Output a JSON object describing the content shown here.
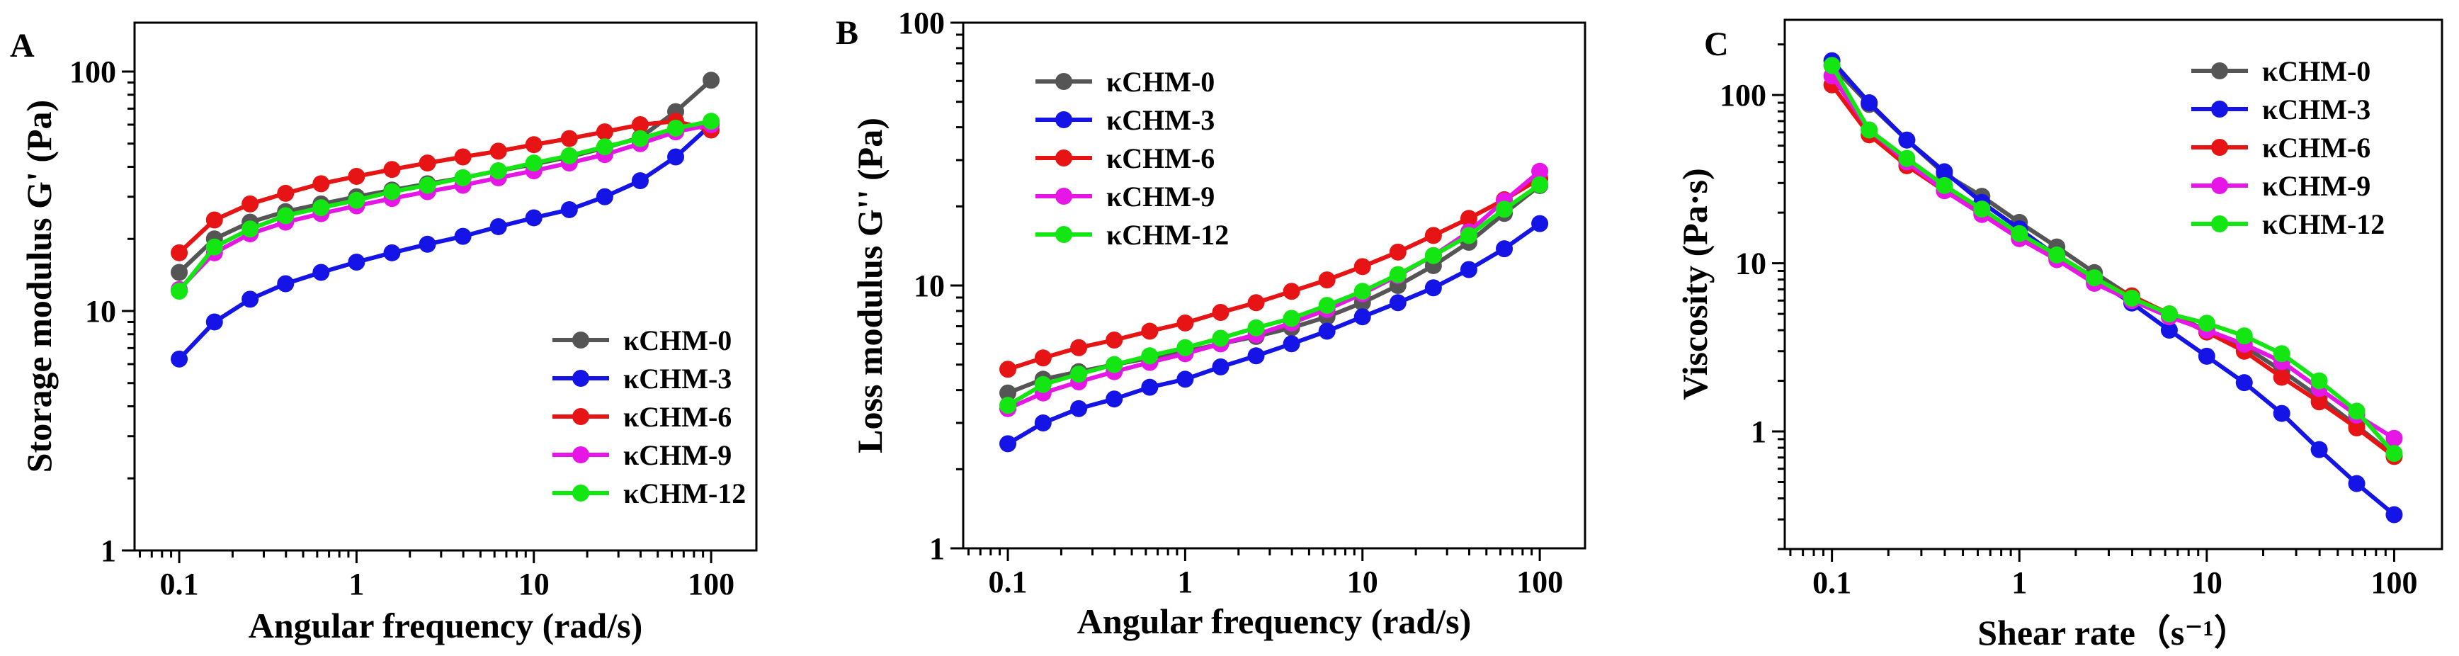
{
  "chart_data": [
    {
      "type": "line",
      "panel": "A",
      "xscale": "log",
      "yscale": "log",
      "xlim": [
        0.056,
        180
      ],
      "ylim": [
        1,
        160
      ],
      "xlabel": "Angular frequency (rad/s)",
      "ylabel": "Storage modulus G' (Pa)",
      "xticks": [
        0.1,
        1,
        10,
        100
      ],
      "xtick_labels": [
        "0.1",
        "1",
        "10",
        "100"
      ],
      "yticks": [
        1,
        10,
        100
      ],
      "ytick_labels": [
        "1",
        "10",
        "100"
      ],
      "legend_position": "bottom-right",
      "x": [
        0.1,
        0.158,
        0.251,
        0.398,
        0.631,
        1,
        1.585,
        2.512,
        3.981,
        6.31,
        10,
        15.85,
        25.12,
        39.81,
        63.1,
        100
      ],
      "series": [
        {
          "name": "κCHM-0",
          "color": "#555555",
          "values": [
            14.5,
            20,
            23.5,
            26,
            28,
            30,
            32,
            34,
            36,
            38.5,
            41,
            44,
            48,
            53,
            68,
            92
          ]
        },
        {
          "name": "κCHM-3",
          "color": "#1414e6",
          "values": [
            6.3,
            9,
            11.2,
            13,
            14.5,
            16,
            17.5,
            19,
            20.5,
            22.5,
            24.5,
            26.5,
            30,
            35,
            44,
            60
          ]
        },
        {
          "name": "κCHM-6",
          "color": "#e61414",
          "values": [
            17.5,
            24,
            28,
            31,
            34,
            36.5,
            39,
            41.5,
            44,
            46.5,
            49.5,
            52.5,
            56,
            60,
            62,
            57
          ]
        },
        {
          "name": "κCHM-9",
          "color": "#e617e6",
          "values": [
            12.3,
            17.5,
            21,
            23.5,
            25.5,
            27.5,
            29.5,
            31.5,
            33.5,
            36,
            38.5,
            41.5,
            45,
            50,
            56,
            60
          ]
        },
        {
          "name": "κCHM-12",
          "color": "#14e614",
          "values": [
            12.1,
            18.5,
            22,
            25,
            27,
            29,
            31.5,
            33.5,
            36,
            38.5,
            41.5,
            44.5,
            48.5,
            52.5,
            58,
            62
          ]
        }
      ]
    },
    {
      "type": "line",
      "panel": "B",
      "xscale": "log",
      "yscale": "log",
      "xlim": [
        0.056,
        180
      ],
      "ylim": [
        1,
        100
      ],
      "xlabel": "Angular frequency (rad/s)",
      "ylabel": "Loss modulus G'' (Pa)",
      "xticks": [
        0.1,
        1,
        10,
        100
      ],
      "xtick_labels": [
        "0.1",
        "1",
        "10",
        "100"
      ],
      "yticks": [
        1,
        10,
        100
      ],
      "ytick_labels": [
        "1",
        "10",
        "100"
      ],
      "legend_position": "top-left",
      "x": [
        0.1,
        0.158,
        0.251,
        0.398,
        0.631,
        1,
        1.585,
        2.512,
        3.981,
        6.31,
        10,
        15.85,
        25.12,
        39.81,
        63.1,
        100
      ],
      "series": [
        {
          "name": "κCHM-0",
          "color": "#555555",
          "values": [
            3.9,
            4.4,
            4.7,
            5.0,
            5.3,
            5.6,
            6.0,
            6.4,
            6.9,
            7.6,
            8.6,
            10.0,
            11.9,
            14.6,
            18.8,
            24
          ]
        },
        {
          "name": "κCHM-3",
          "color": "#1414e6",
          "values": [
            2.5,
            3.0,
            3.4,
            3.7,
            4.1,
            4.4,
            4.9,
            5.4,
            6.0,
            6.7,
            7.6,
            8.6,
            9.8,
            11.5,
            13.8,
            17.2
          ]
        },
        {
          "name": "κCHM-6",
          "color": "#e61414",
          "values": [
            4.8,
            5.3,
            5.8,
            6.2,
            6.7,
            7.2,
            7.9,
            8.6,
            9.5,
            10.5,
            11.8,
            13.4,
            15.5,
            18.0,
            21.2,
            25.5
          ]
        },
        {
          "name": "κCHM-9",
          "color": "#e617e6",
          "values": [
            3.4,
            3.9,
            4.3,
            4.7,
            5.1,
            5.5,
            6.0,
            6.5,
            7.2,
            8.1,
            9.3,
            10.9,
            13.0,
            16.0,
            21.0,
            27.2
          ]
        },
        {
          "name": "κCHM-12",
          "color": "#14e614",
          "values": [
            3.5,
            4.2,
            4.6,
            5.0,
            5.4,
            5.8,
            6.3,
            6.9,
            7.5,
            8.4,
            9.5,
            11.0,
            13.0,
            15.5,
            19.5,
            24.2
          ]
        }
      ]
    },
    {
      "type": "line",
      "panel": "C",
      "xscale": "log",
      "yscale": "log",
      "xlim": [
        0.056,
        180
      ],
      "ylim": [
        0.2,
        280
      ],
      "xlabel": "Shear rate（s⁻¹）",
      "ylabel": "Viscosity (Pa·s)",
      "xticks": [
        0.1,
        1,
        10,
        100
      ],
      "xtick_labels": [
        "0.1",
        "1",
        "10",
        "100"
      ],
      "yticks": [
        1,
        10,
        100
      ],
      "ytick_labels": [
        "1",
        "10",
        "100"
      ],
      "legend_position": "top-right",
      "x": [
        0.1,
        0.158,
        0.251,
        0.398,
        0.631,
        1,
        1.585,
        2.512,
        3.981,
        6.31,
        10,
        15.85,
        25.12,
        39.81,
        63.1,
        100
      ],
      "series": [
        {
          "name": "κCHM-0",
          "color": "#555555",
          "values": [
            150,
            88,
            54,
            34,
            25,
            17.5,
            12.5,
            8.8,
            6.3,
            5.0,
            4.0,
            3.2,
            2.3,
            1.6,
            1.08,
            0.72
          ]
        },
        {
          "name": "κCHM-3",
          "color": "#1414e6",
          "values": [
            160,
            90,
            54,
            35,
            23,
            16,
            11,
            8,
            5.8,
            4.0,
            2.8,
            1.95,
            1.28,
            0.78,
            0.49,
            0.32
          ]
        },
        {
          "name": "κCHM-6",
          "color": "#e61414",
          "values": [
            115,
            58,
            38,
            27,
            20,
            14.5,
            10.8,
            8.0,
            6.4,
            5.0,
            3.9,
            3.0,
            2.1,
            1.5,
            1.05,
            0.71
          ]
        },
        {
          "name": "κCHM-9",
          "color": "#e617e6",
          "values": [
            130,
            62,
            40,
            27,
            19.5,
            14,
            10.5,
            7.6,
            6.0,
            4.8,
            4.0,
            3.3,
            2.6,
            1.8,
            1.25,
            0.91
          ]
        },
        {
          "name": "κCHM-12",
          "color": "#14e614",
          "values": [
            150,
            62,
            42,
            29,
            21,
            15,
            11.2,
            8.2,
            6.2,
            5.0,
            4.4,
            3.7,
            2.9,
            2.0,
            1.32,
            0.74
          ]
        }
      ]
    }
  ]
}
